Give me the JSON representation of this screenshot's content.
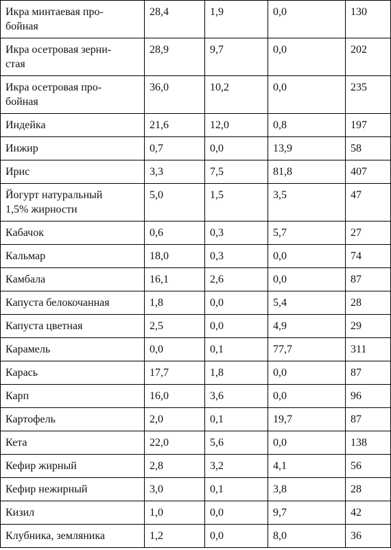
{
  "table": {
    "rows": [
      [
        "Икра минтаевая про-\nбойная",
        "28,4",
        "1,9",
        "0,0",
        "130"
      ],
      [
        "Икра осетровая зерни-\nстая",
        "28,9",
        "9,7",
        "0,0",
        "202"
      ],
      [
        "Икра осетровая про-\nбойная",
        "36,0",
        "10,2",
        "0,0",
        "235"
      ],
      [
        "Индейка",
        "21,6",
        "12,0",
        "0,8",
        "197"
      ],
      [
        "Инжир",
        "0,7",
        "0,0",
        "13,9",
        "58"
      ],
      [
        "Ирис",
        "3,3",
        "7,5",
        "81,8",
        "407"
      ],
      [
        "Йогурт натуральный\n1,5% жирности",
        "5,0",
        "1,5",
        "3,5",
        "47"
      ],
      [
        "Кабачок",
        "0,6",
        "0,3",
        "5,7",
        "27"
      ],
      [
        "Кальмар",
        "18,0",
        "0,3",
        "0,0",
        "74"
      ],
      [
        "Камбала",
        "16,1",
        "2,6",
        "0,0",
        "87"
      ],
      [
        "Капуста белокочанная",
        "1,8",
        "0,0",
        "5,4",
        "28"
      ],
      [
        "Капуста цветная",
        "2,5",
        "0,0",
        "4,9",
        "29"
      ],
      [
        "Карамель",
        "0,0",
        "0,1",
        "77,7",
        "311"
      ],
      [
        "Карась",
        "17,7",
        "1,8",
        "0,0",
        "87"
      ],
      [
        "Карп",
        "16,0",
        "3,6",
        "0,0",
        "96"
      ],
      [
        "Картофель",
        "2,0",
        "0,1",
        "19,7",
        "87"
      ],
      [
        "Кета",
        "22,0",
        "5,6",
        "0,0",
        "138"
      ],
      [
        "Кефир жирный",
        "2,8",
        "3,2",
        "4,1",
        "56"
      ],
      [
        "Кефир нежирный",
        "3,0",
        "0,1",
        "3,8",
        "28"
      ],
      [
        "Кизил",
        "1,0",
        "0,0",
        "9,7",
        "42"
      ],
      [
        "Клубника, земляника",
        "1,2",
        "0,0",
        "8,0",
        "36"
      ]
    ]
  }
}
